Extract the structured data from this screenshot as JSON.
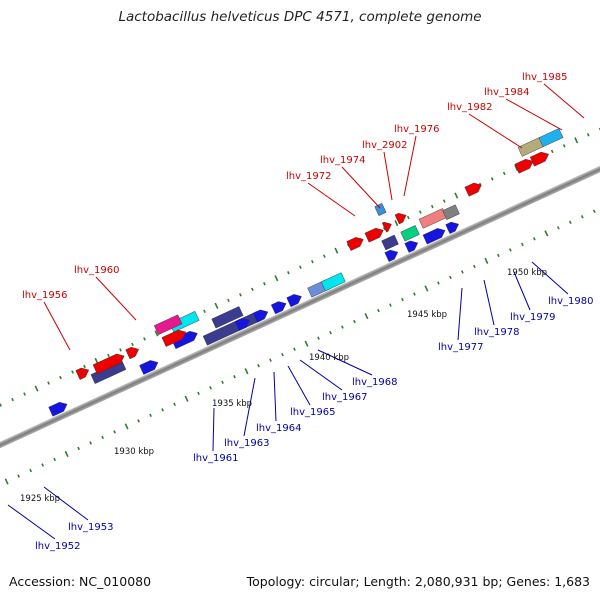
{
  "title": "Lactobacillus helveticus DPC 4571, complete genome",
  "footer": {
    "accession": "Accession: NC_010080",
    "topology": "Topology: circular; Length: 2,080,931 bp; Genes: 1,683"
  },
  "colors": {
    "forward_labels": "#cc0000",
    "reverse_labels": "#0000aa",
    "backbone": "#8a8a8a",
    "tick": "#2e7d32"
  },
  "kbp_labels": [
    "1925 kbp",
    "1930 kbp",
    "1935 kbp",
    "1940 kbp",
    "1945 kbp",
    "1950 kbp"
  ],
  "forward_gene_labels": [
    "lhv_1956",
    "lhv_1960",
    "lhv_1972",
    "lhv_1974",
    "lhv_2902",
    "lhv_1976",
    "lhv_1982",
    "lhv_1984",
    "lhv_1985"
  ],
  "reverse_gene_labels": [
    "lhv_1952",
    "lhv_1953",
    "lhv_1961",
    "lhv_1963",
    "lhv_1964",
    "lhv_1965",
    "lhv_1967",
    "lhv_1968",
    "lhv_1977",
    "lhv_1978",
    "lhv_1979",
    "lhv_1980"
  ]
}
